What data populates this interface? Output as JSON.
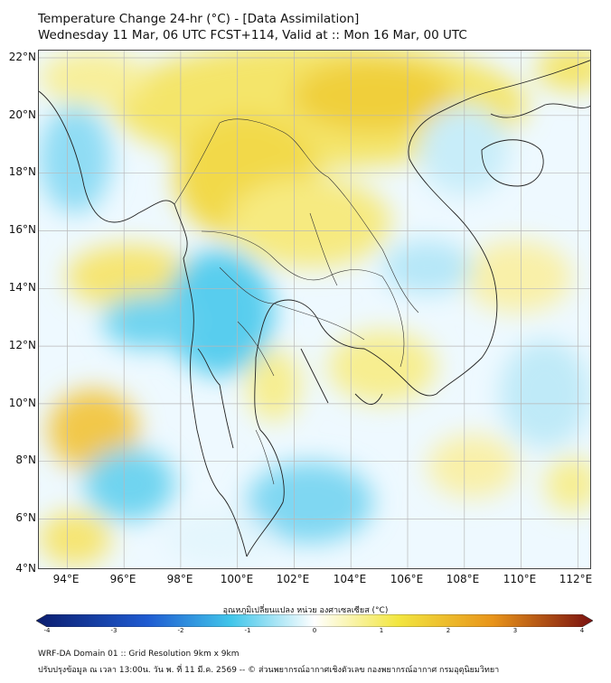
{
  "header": {
    "title_line1": "Temperature Change 24-hr (°C) - [Data Assimilation]",
    "title_line2": "Wednesday 11 Mar, 06 UTC FCST+114, Valid at :: Mon 16 Mar, 00 UTC"
  },
  "map": {
    "lat_labels": [
      "22°N",
      "20°N",
      "18°N",
      "16°N",
      "14°N",
      "12°N",
      "10°N",
      "8°N",
      "6°N",
      "4°N"
    ],
    "lon_labels": [
      "94°E",
      "96°E",
      "98°E",
      "100°E",
      "102°E",
      "104°E",
      "106°E",
      "108°E",
      "110°E",
      "112°E"
    ],
    "lat_range": [
      4,
      22
    ],
    "lon_range": [
      93,
      112.5
    ],
    "grid_lines": true
  },
  "colorbar": {
    "title": "อุณหภูมิเปลี่ยนแปลง หน่วย องศาเซลเซียส (°C)",
    "ticks": [
      "-4",
      "-3",
      "-2",
      "-1",
      "0",
      "1",
      "2",
      "3",
      "4"
    ],
    "range": [
      -4,
      4
    ],
    "colors": {
      "min": "#0b1d6e",
      "cold": "#1f5bd1",
      "cool": "#41c6ea",
      "neutral": "#ffffff",
      "warm": "#f2e640",
      "hot": "#e8941a",
      "max": "#7a1010"
    }
  },
  "footer": {
    "line1": "WRF-DA Domain 01 :: Grid Resolution 9km x 9km",
    "line2": "ปรับปรุงข้อมูล ณ เวลา 13:00น. วัน พ. ที่ 11 มี.ค. 2569 -- © ส่วนพยากรณ์อากาศเชิงตัวเลข กองพยากรณ์อากาศ กรมอุตุนิยมวิทยา"
  }
}
